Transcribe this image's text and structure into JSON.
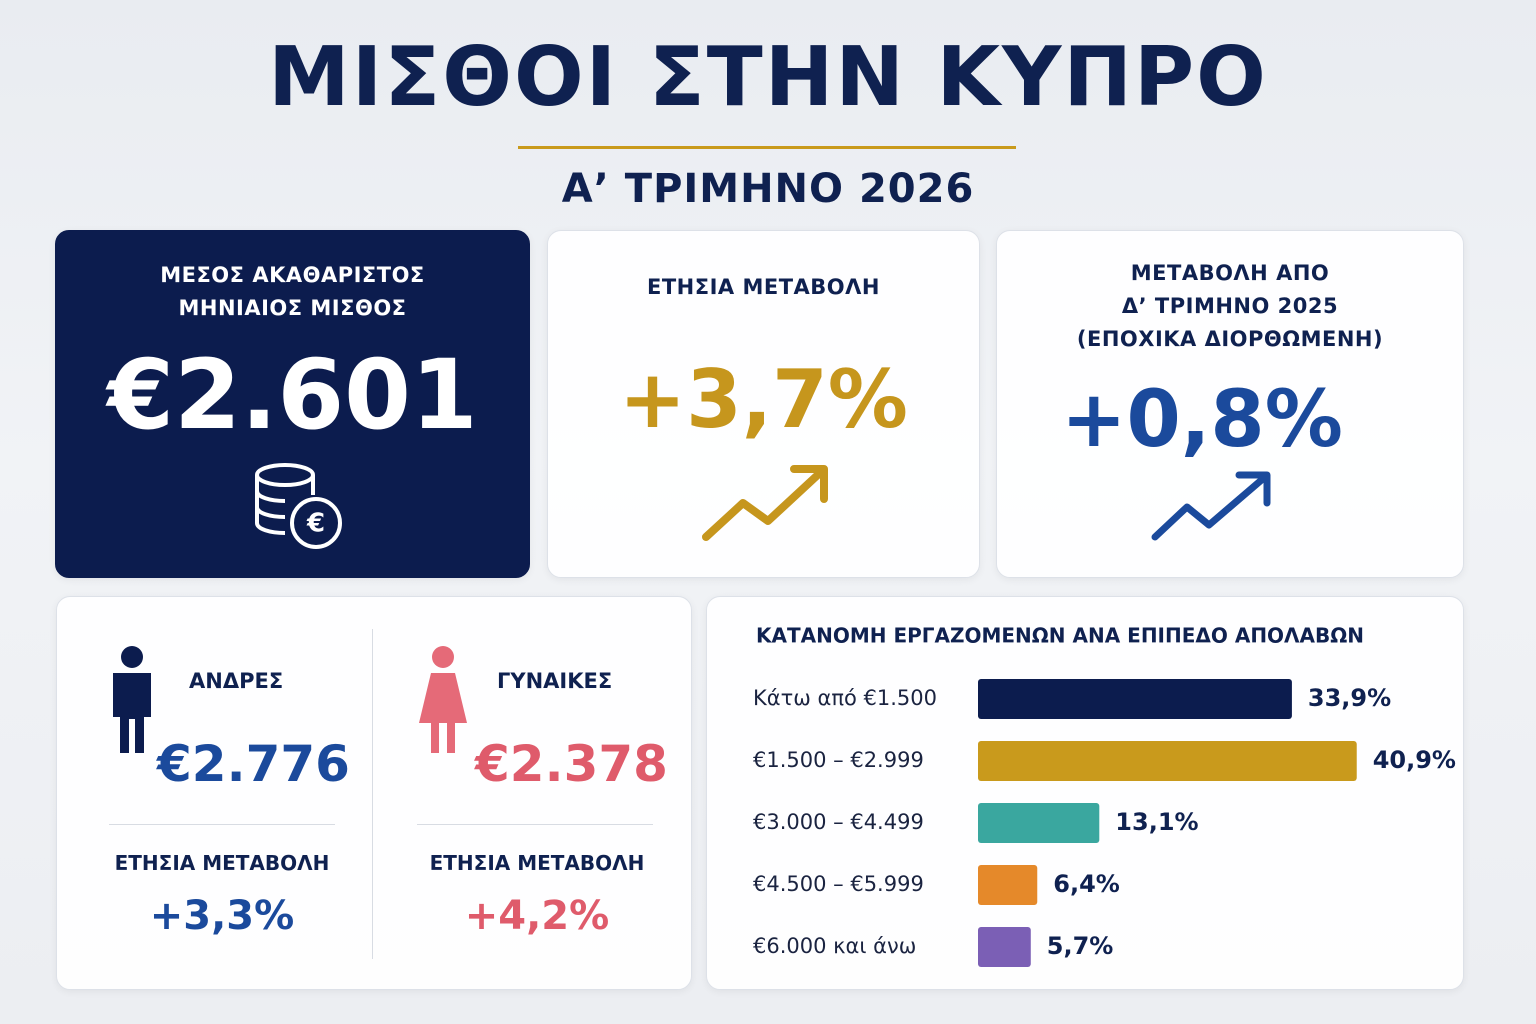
{
  "header": {
    "title": "ΜΙΣΘΟΙ ΣΤΗΝ ΚΥΠΡΟ",
    "subtitle": "Α’ ΤΡΙΜΗΝΟ 2026"
  },
  "cards": [
    {
      "label_lines": [
        "ΜΕΣΟΣ ΑΚΑΘΑΡΙΣΤΟΣ",
        "ΜΗΝΙΑΙΟΣ ΜΙΣΘΟΣ"
      ],
      "value": "€2.601"
    },
    {
      "label_lines": [
        "ΕΤΗΣΙΑ ΜΕΤΑΒΟΛΗ"
      ],
      "value": "+3,7%"
    },
    {
      "label_lines": [
        "ΜΕΤΑΒΟΛΗ ΑΠΟ",
        "Δ’ ΤΡΙΜΗΝΟ 2025",
        "(ΕΠΟΧΙΚΑ ΔΙΟΡΘΩΜΕΝΗ)"
      ],
      "value": "+0,8%"
    }
  ],
  "gender": [
    {
      "label": "ΑΝΔΡΕΣ",
      "value": "€2.776",
      "change_label": "ΕΤΗΣΙΑ ΜΕΤΑΒΟΛΗ",
      "change": "+3,3%"
    },
    {
      "label": "ΓΥΝΑΙΚΕΣ",
      "value": "€2.378",
      "change_label": "ΕΤΗΣΙΑ ΜΕΤΑΒΟΛΗ",
      "change": "+4,2%"
    }
  ],
  "chart_data": {
    "type": "bar",
    "title": "ΚΑΤΑΝΟΜΗ ΕΡΓΑΖΟΜΕΝΩΝ ΑΝΑ ΕΠΙΠΕΔΟ ΑΠΟΛΑΒΩΝ",
    "orientation": "horizontal",
    "categories": [
      "Κάτω από €1.500",
      "€1.500 – €2.999",
      "€3.000 – €4.499",
      "€4.500 – €5.999",
      "€6.000 και άνω"
    ],
    "values": [
      33.9,
      40.9,
      13.1,
      6.4,
      5.7
    ],
    "value_labels": [
      "33,9%",
      "40,9%",
      "13,1%",
      "6,4%",
      "5,7%"
    ],
    "colors": [
      "#0c1c4e",
      "#c99a1c",
      "#3aa79f",
      "#e5892a",
      "#7b5fb5"
    ]
  }
}
